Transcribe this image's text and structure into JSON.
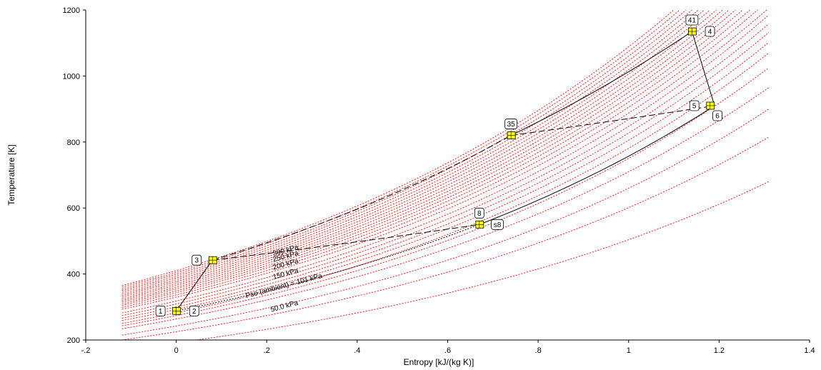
{
  "chart_data": {
    "type": "line",
    "title": "",
    "xlabel": "Entropy [kJ/(kg K)]",
    "ylabel": "Temperature [K]",
    "xlim": [
      -0.2,
      1.4
    ],
    "ylim": [
      200,
      1200
    ],
    "x_ticks": [
      -0.2,
      0,
      0.2,
      0.4,
      0.6,
      0.8,
      1,
      1.2,
      1.4
    ],
    "x_tick_labels": [
      "-.2",
      "0",
      ".2",
      ".4",
      ".6",
      ".8",
      "1",
      "1.2",
      "1.4"
    ],
    "y_ticks": [
      200,
      400,
      600,
      800,
      1000,
      1200
    ],
    "y_tick_labels": [
      "200",
      "400",
      "600",
      "800",
      "1000",
      "1200"
    ],
    "grid": false,
    "colors": {
      "isobar": "#ff0000",
      "process": "#000000",
      "marker_fill": "#ffff00"
    },
    "isobar_labels": [
      {
        "text": "300 kPa",
        "x": 0.215,
        "y": 455
      },
      {
        "text": "250 kPa",
        "x": 0.215,
        "y": 437
      },
      {
        "text": "200 kPa",
        "x": 0.215,
        "y": 413
      },
      {
        "text": "150 kPa",
        "x": 0.215,
        "y": 384
      },
      {
        "text": "Pso (ambient) =  101 kPa",
        "x": 0.155,
        "y": 327
      },
      {
        "text": "50.0 kPa",
        "x": 0.21,
        "y": 285
      }
    ],
    "isobars": [
      {
        "x": [
          -0.12,
          1.1
        ],
        "y": [
          365,
          1200
        ]
      },
      {
        "x": [
          -0.12,
          1.113
        ],
        "y": [
          360,
          1200
        ]
      },
      {
        "x": [
          -0.12,
          1.127
        ],
        "y": [
          355,
          1200
        ]
      },
      {
        "x": [
          -0.12,
          1.14
        ],
        "y": [
          350,
          1200
        ]
      },
      {
        "x": [
          -0.12,
          1.154
        ],
        "y": [
          345,
          1200
        ]
      },
      {
        "x": [
          -0.12,
          1.167
        ],
        "y": [
          340,
          1200
        ]
      },
      {
        "x": [
          -0.12,
          1.18
        ],
        "y": [
          335,
          1200
        ]
      },
      {
        "x": [
          -0.12,
          1.194
        ],
        "y": [
          330,
          1200
        ]
      },
      {
        "x": [
          -0.12,
          1.208
        ],
        "y": [
          325,
          1200
        ]
      },
      {
        "x": [
          -0.12,
          1.222
        ],
        "y": [
          320,
          1200
        ]
      },
      {
        "x": [
          -0.12,
          1.236
        ],
        "y": [
          315,
          1200
        ]
      },
      {
        "x": [
          -0.12,
          1.252
        ],
        "y": [
          310,
          1200
        ]
      },
      {
        "x": [
          -0.12,
          1.268
        ],
        "y": [
          305,
          1200
        ]
      },
      {
        "x": [
          -0.12,
          1.285
        ],
        "y": [
          299,
          1200
        ]
      },
      {
        "x": [
          -0.12,
          1.305
        ],
        "y": [
          293,
          1200
        ]
      },
      {
        "x": [
          -0.12,
          1.31
        ],
        "y": [
          282,
          1185
        ]
      },
      {
        "x": [
          -0.12,
          1.31
        ],
        "y": [
          274,
          1158
        ]
      },
      {
        "x": [
          -0.12,
          1.31
        ],
        "y": [
          266,
          1132
        ]
      },
      {
        "x": [
          -0.12,
          1.31
        ],
        "y": [
          259,
          1102
        ]
      },
      {
        "x": [
          -0.12,
          1.31
        ],
        "y": [
          250,
          1070
        ]
      },
      {
        "x": [
          -0.12,
          1.31
        ],
        "y": [
          243,
          1025
        ]
      },
      {
        "x": [
          -0.12,
          1.31
        ],
        "y": [
          234,
          965
        ]
      },
      {
        "x": [
          -0.12,
          1.31
        ],
        "y": [
          215,
          900
        ]
      },
      {
        "x": [
          -0.12,
          1.31
        ],
        "y": [
          200,
          815
        ]
      },
      {
        "x": [
          0.045,
          1.31
        ],
        "y": [
          200,
          680
        ]
      }
    ],
    "states": [
      {
        "label": "1",
        "s": 0.0,
        "T": 288,
        "label_side": "left"
      },
      {
        "label": "2",
        "s": 0.005,
        "T": 288,
        "label_side": "right"
      },
      {
        "label": "3",
        "s": 0.08,
        "T": 442,
        "label_side": "left"
      },
      {
        "label": "35",
        "s": 0.74,
        "T": 820,
        "label_side": "top"
      },
      {
        "label": "41",
        "s": 1.14,
        "T": 1135,
        "label_side": "top"
      },
      {
        "label": "4",
        "s": 1.145,
        "T": 1135,
        "label_side": "right"
      },
      {
        "label": "5",
        "s": 1.18,
        "T": 910,
        "label_side": "left"
      },
      {
        "label": "6",
        "s": 1.19,
        "T": 910,
        "label_side": "below"
      },
      {
        "label": "8",
        "s": 0.67,
        "T": 550,
        "label_side": "top"
      },
      {
        "label": "s8",
        "s": 0.675,
        "T": 550,
        "label_side": "right"
      }
    ],
    "processes": [
      {
        "style": "solid",
        "x": [
          0.0,
          0.08
        ],
        "y": [
          288,
          442
        ]
      },
      {
        "style": "dashed",
        "x": [
          0.08,
          0.74
        ],
        "y": [
          442,
          820
        ]
      },
      {
        "style": "solid",
        "x": [
          0.74,
          1.14
        ],
        "y": [
          820,
          1135
        ]
      },
      {
        "style": "solid",
        "x": [
          1.14,
          1.19
        ],
        "y": [
          1135,
          910
        ]
      },
      {
        "style": "dashed",
        "x": [
          0.74,
          1.19
        ],
        "y": [
          820,
          910
        ]
      },
      {
        "style": "solid",
        "x": [
          0.67,
          1.19
        ],
        "y": [
          550,
          910
        ]
      },
      {
        "style": "dashed",
        "x": [
          0.08,
          0.67
        ],
        "y": [
          442,
          550
        ]
      },
      {
        "style": "dotted",
        "x": [
          0.0,
          0.67
        ],
        "y": [
          288,
          550
        ]
      }
    ]
  }
}
